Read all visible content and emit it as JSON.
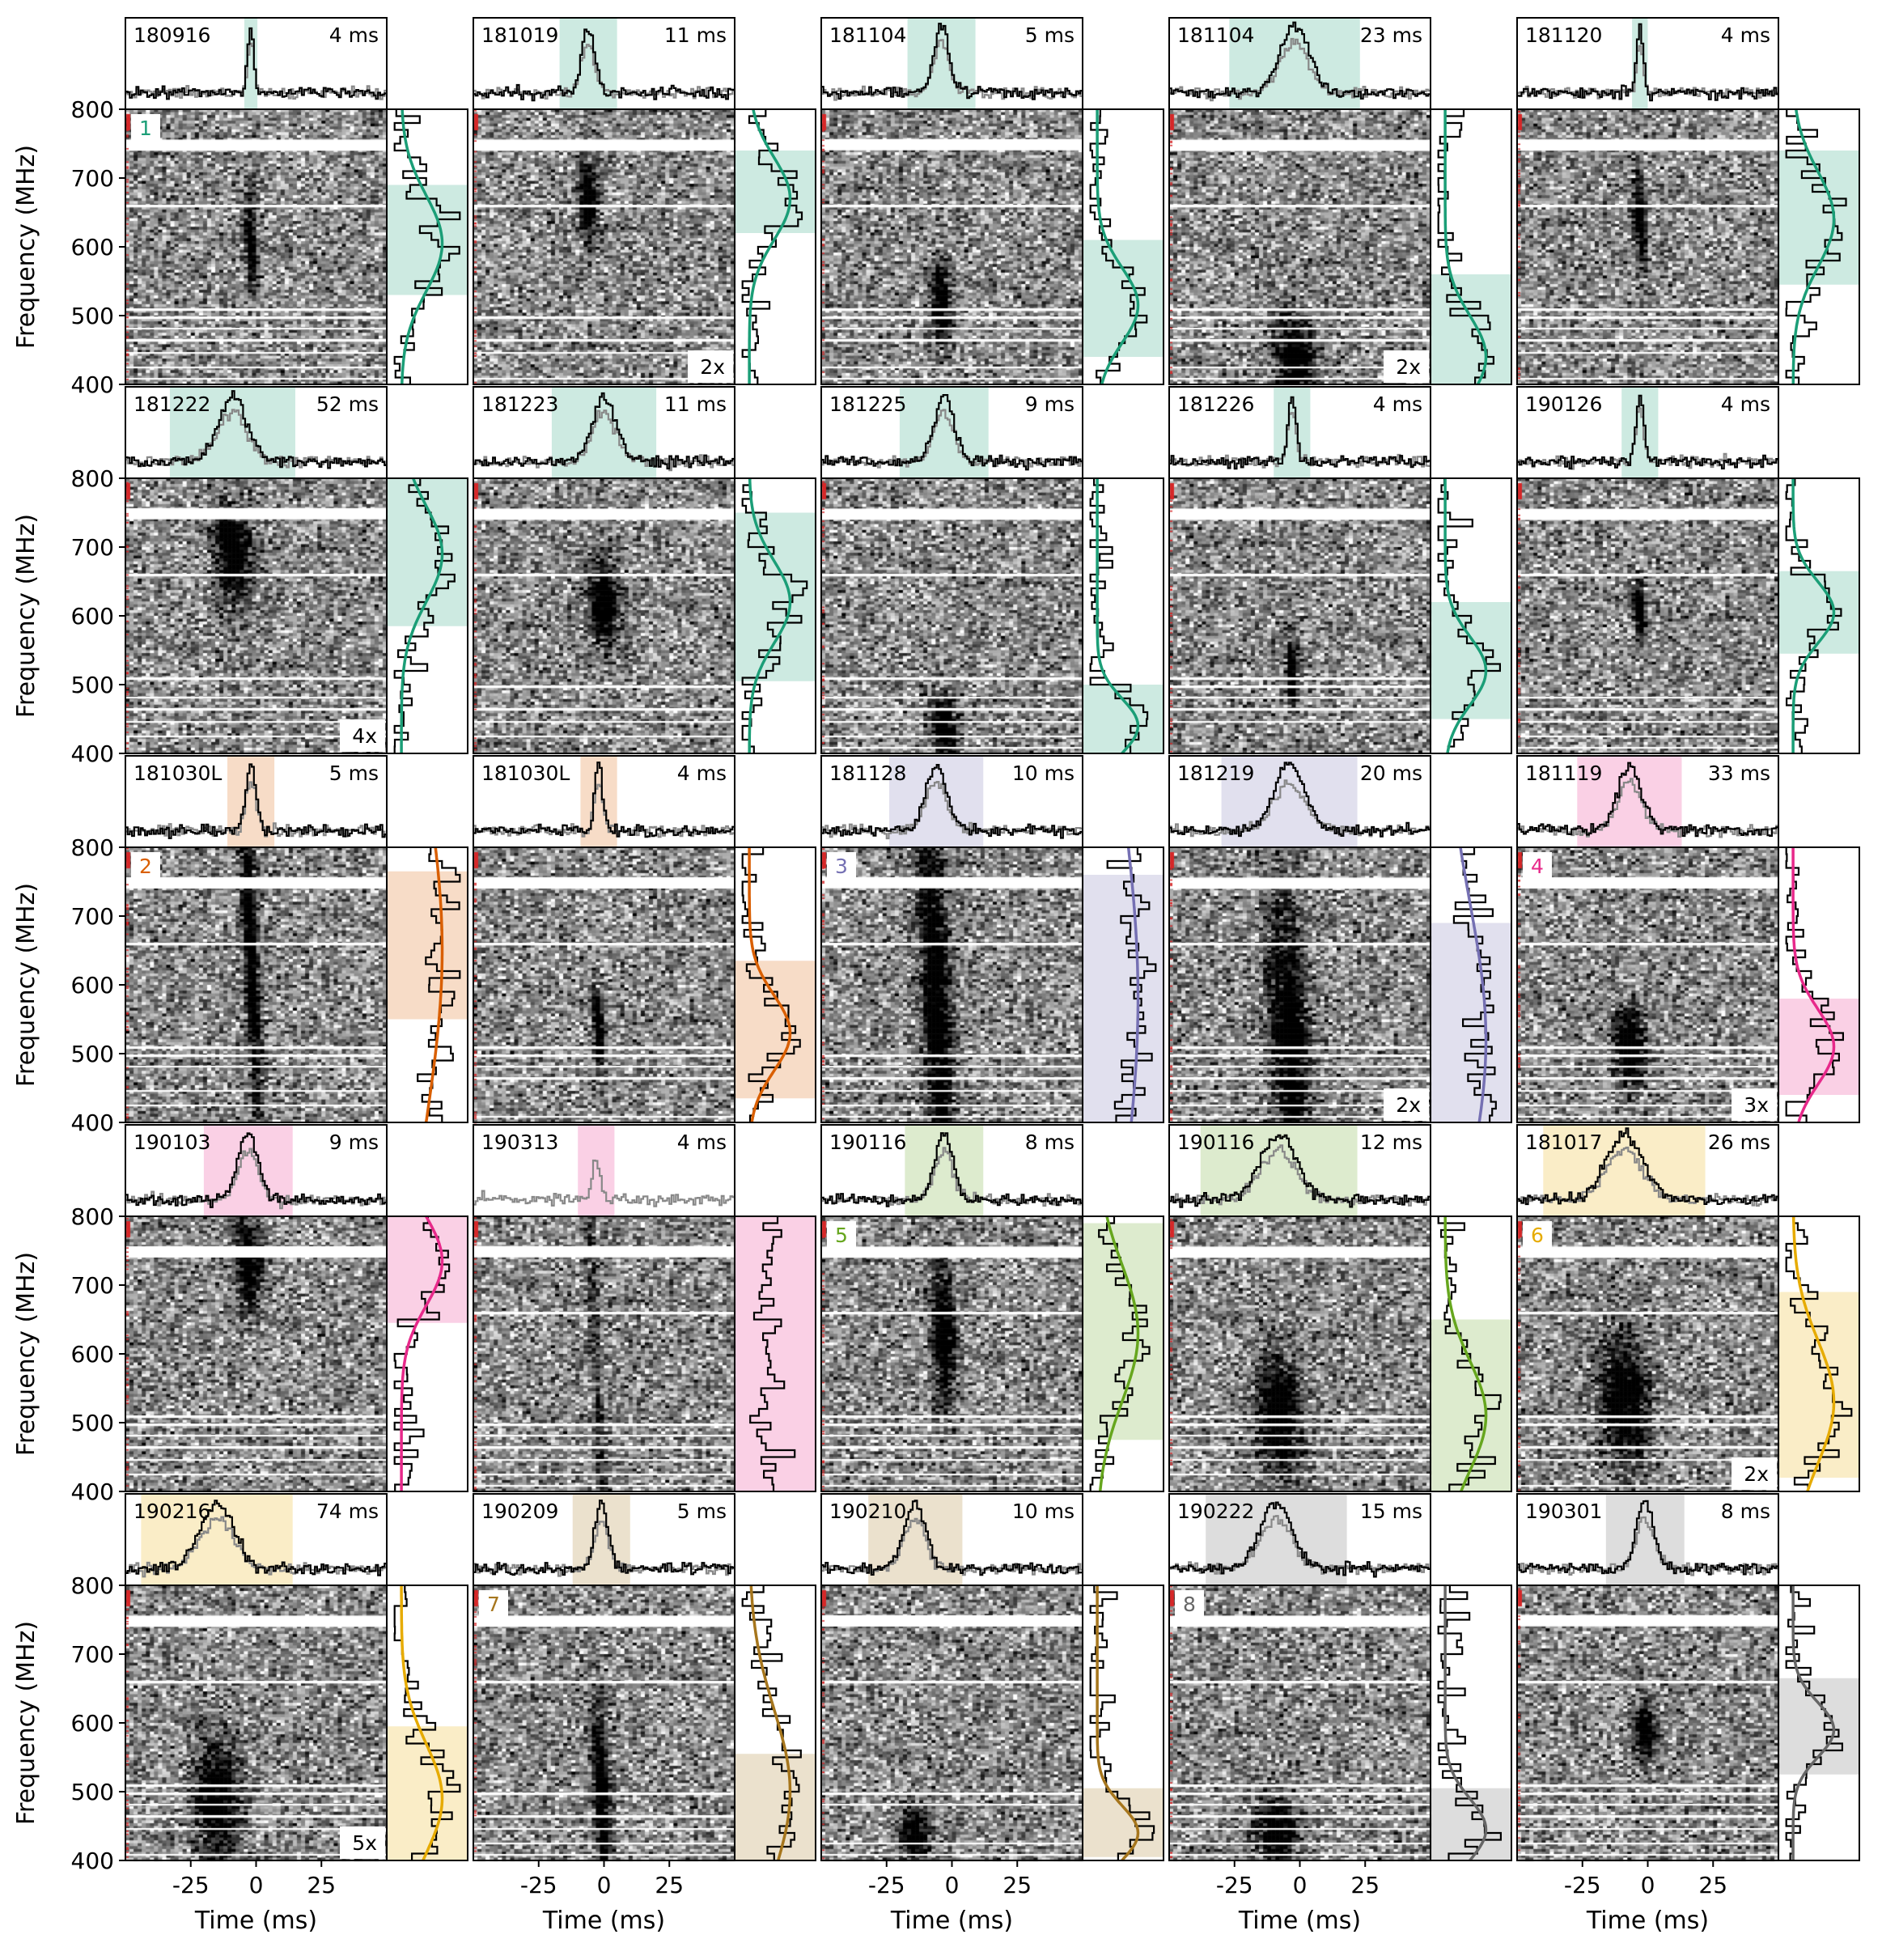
{
  "chart_data": {
    "type": "heatmap",
    "axis": {
      "ylabel": "Frequency (MHz)",
      "xlabel": "Time (ms)",
      "yticks": [
        "800",
        "700",
        "600",
        "500",
        "400"
      ],
      "xticks": [
        "-25",
        "0",
        "25"
      ],
      "ylim": [
        400,
        800
      ],
      "xlim": [
        -50,
        50
      ]
    },
    "colors": {
      "1": "#1b9e77",
      "2": "#d95f02",
      "3": "#7570b3",
      "4": "#e7298a",
      "5": "#66a61e",
      "6": "#e6ab02",
      "7": "#a6761d",
      "8": "#666666"
    },
    "rows": [
      [
        {
          "id": "180916",
          "width": "4 ms",
          "group": "1",
          "label": "1",
          "scale": "",
          "t0": -2,
          "tw": 5,
          "f0": 530,
          "f1": 690,
          "fc": 605,
          "fwidth": 70,
          "fmark": "gauss",
          "gray": 0.3
        },
        {
          "id": "181019",
          "width": "11 ms",
          "group": "1",
          "label": "",
          "scale": "2x",
          "t0": -6,
          "tw": 22,
          "f0": 620,
          "f1": 740,
          "fc": 670,
          "fwidth": 60,
          "fmark": "gauss",
          "gray": 0.2
        },
        {
          "id": "181104",
          "width": "5 ms",
          "group": "1",
          "label": "",
          "scale": "",
          "t0": -4,
          "tw": 26,
          "f0": 440,
          "f1": 610,
          "fc": 515,
          "fwidth": 55,
          "fmark": "gauss",
          "gray": 0.3
        },
        {
          "id": "181104",
          "width": "23 ms",
          "group": "1",
          "label": "",
          "scale": "2x",
          "t0": -2,
          "tw": 50,
          "f0": 400,
          "f1": 560,
          "fc": 440,
          "fwidth": 60,
          "fmark": "gauss",
          "gray": 0.3
        },
        {
          "id": "181120",
          "width": "4 ms",
          "group": "1",
          "label": "",
          "scale": "",
          "t0": -3,
          "tw": 6,
          "f0": 545,
          "f1": 740,
          "fc": 640,
          "fwidth": 70,
          "fmark": "gauss",
          "gray": 0.3
        }
      ],
      [
        {
          "id": "181222",
          "width": "52 ms",
          "group": "1",
          "label": "",
          "scale": "4x",
          "t0": -9,
          "tw": 48,
          "f0": 585,
          "f1": 800,
          "fc": 690,
          "fwidth": 70,
          "fmark": "gauss",
          "gray": 0.3
        },
        {
          "id": "181223",
          "width": "11 ms",
          "group": "1",
          "label": "",
          "scale": "",
          "t0": 0,
          "tw": 40,
          "f0": 505,
          "f1": 750,
          "fc": 620,
          "fwidth": 60,
          "fmark": "gauss",
          "gray": 0.3
        },
        {
          "id": "181225",
          "width": "9 ms",
          "group": "1",
          "label": "",
          "scale": "",
          "t0": -3,
          "tw": 34,
          "f0": 400,
          "f1": 500,
          "fc": 440,
          "fwidth": 40,
          "fmark": "gauss",
          "gray": 0.3
        },
        {
          "id": "181226",
          "width": "4 ms",
          "group": "1",
          "label": "",
          "scale": "",
          "t0": -3,
          "tw": 14,
          "f0": 450,
          "f1": 620,
          "fc": 520,
          "fwidth": 50,
          "fmark": "gauss",
          "gray": 0.3
        },
        {
          "id": "190126",
          "width": "4 ms",
          "group": "1",
          "label": "",
          "scale": "",
          "t0": -3,
          "tw": 14,
          "f0": 545,
          "f1": 665,
          "fc": 605,
          "fwidth": 45,
          "fmark": "gauss",
          "gray": 0.3
        }
      ],
      [
        {
          "id": "181030L",
          "width": "5 ms",
          "group": "2",
          "label": "2",
          "scale": "",
          "t0": -2,
          "tw": 18,
          "f0": 550,
          "f1": 765,
          "fc": 650,
          "fwidth": 250,
          "fmark": "gauss",
          "gray": 0.2
        },
        {
          "id": "181030L",
          "width": "4 ms",
          "group": "2",
          "label": "",
          "scale": "",
          "t0": -2,
          "tw": 14,
          "f0": 435,
          "f1": 635,
          "fc": 530,
          "fwidth": 55,
          "fmark": "gauss",
          "gray": 0.3
        },
        {
          "id": "181128",
          "width": "10 ms",
          "group": "3",
          "label": "3",
          "scale": "",
          "t0": -6,
          "tw": 36,
          "f0": 400,
          "f1": 760,
          "fc": 580,
          "fwidth": 300,
          "fmark": "gauss",
          "gray": 0.3
        },
        {
          "id": "181219",
          "width": "20 ms",
          "group": "3",
          "label": "",
          "scale": "2x",
          "t0": -4,
          "tw": 52,
          "f0": 400,
          "f1": 690,
          "fc": 520,
          "fwidth": 200,
          "fmark": "gauss",
          "gray": 0.3
        },
        {
          "id": "181119",
          "width": "33 ms",
          "group": "4",
          "label": "4",
          "scale": "3x",
          "t0": -7,
          "tw": 40,
          "f0": 440,
          "f1": 580,
          "fc": 510,
          "fwidth": 55,
          "fmark": "gauss",
          "gray": 0.3
        }
      ],
      [
        {
          "id": "190103",
          "width": "9 ms",
          "group": "4",
          "label": "",
          "scale": "",
          "t0": -3,
          "tw": 34,
          "f0": 645,
          "f1": 800,
          "fc": 735,
          "fwidth": 65,
          "fmark": "gauss",
          "gray": 0.3
        },
        {
          "id": "190313",
          "width": "4 ms",
          "group": "4",
          "label": "",
          "scale": "",
          "t0": -3,
          "tw": 14,
          "f0": 400,
          "f1": 800,
          "fc": 600,
          "fwidth": 100,
          "fmark": "none",
          "gray": 1.0
        },
        {
          "id": "190116",
          "width": "8 ms",
          "group": "5",
          "label": "5",
          "scale": "",
          "t0": -3,
          "tw": 30,
          "f0": 475,
          "f1": 790,
          "fc": 630,
          "fwidth": 100,
          "fmark": "gauss",
          "gray": 0.2
        },
        {
          "id": "190116",
          "width": "12 ms",
          "group": "5",
          "label": "",
          "scale": "",
          "t0": -8,
          "tw": 60,
          "f0": 400,
          "f1": 650,
          "fc": 510,
          "fwidth": 80,
          "fmark": "gauss",
          "gray": 0.3
        },
        {
          "id": "181017",
          "width": "26 ms",
          "group": "6",
          "label": "6",
          "scale": "2x",
          "t0": -9,
          "tw": 62,
          "f0": 420,
          "f1": 690,
          "fc": 530,
          "fwidth": 90,
          "fmark": "gauss",
          "gray": 0.3
        }
      ],
      [
        {
          "id": "190216",
          "width": "74 ms",
          "group": "6",
          "label": "",
          "scale": "5x",
          "t0": -15,
          "tw": 58,
          "f0": 400,
          "f1": 595,
          "fc": 490,
          "fwidth": 80,
          "fmark": "gauss",
          "gray": 0.3
        },
        {
          "id": "190209",
          "width": "5 ms",
          "group": "7",
          "label": "7",
          "scale": "",
          "t0": -1,
          "tw": 22,
          "f0": 400,
          "f1": 555,
          "fc": 500,
          "fwidth": 120,
          "fmark": "gauss",
          "gray": 0.3
        },
        {
          "id": "190210",
          "width": "10 ms",
          "group": "7",
          "label": "",
          "scale": "",
          "t0": -14,
          "tw": 36,
          "f0": 405,
          "f1": 505,
          "fc": 440,
          "fwidth": 40,
          "fmark": "gauss",
          "gray": 0.3
        },
        {
          "id": "190222",
          "width": "15 ms",
          "group": "8",
          "label": "8",
          "scale": "",
          "t0": -9,
          "tw": 54,
          "f0": 400,
          "f1": 505,
          "fc": 445,
          "fwidth": 45,
          "fmark": "gauss",
          "gray": 0.3
        },
        {
          "id": "190301",
          "width": "8 ms",
          "group": "8",
          "label": "",
          "scale": "",
          "t0": -1,
          "tw": 30,
          "f0": 525,
          "f1": 665,
          "fc": 590,
          "fwidth": 40,
          "fmark": "gauss",
          "gray": 0.3
        }
      ]
    ],
    "grid": false
  }
}
